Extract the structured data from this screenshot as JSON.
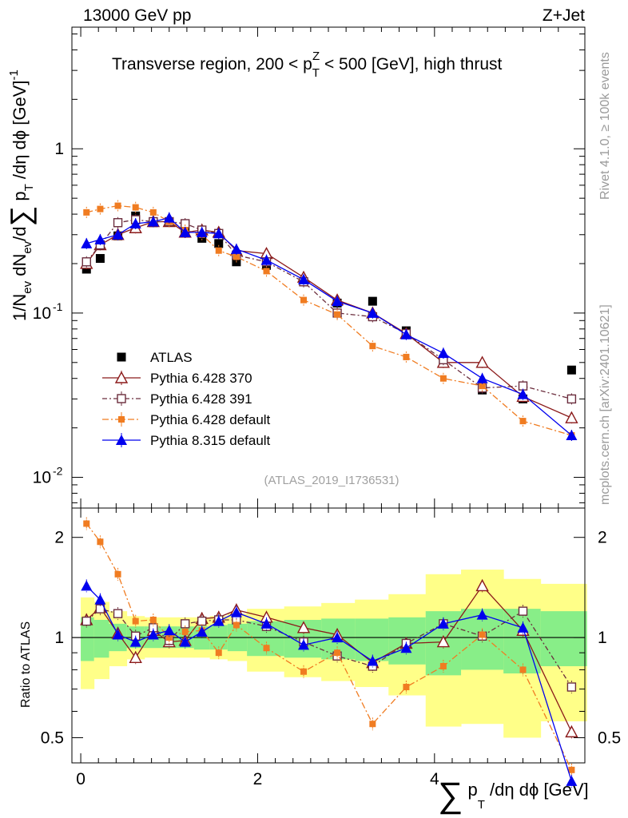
{
  "header": {
    "left": "13000 GeV pp",
    "right": "Z+Jet",
    "title": "Transverse region, 200 < p",
    "title_sup": "Z",
    "title_sub": "T",
    "title_tail": " < 500 [GeV], high thrust",
    "reference": "(ATLAS_2019_I1736531)",
    "side_rivet": "Rivet 4.1.0, ≥ 100k events",
    "side_mcplots": "mcplots.cern.ch [arXiv:2401.10621]"
  },
  "axes": {
    "ylabel_main": "1/N",
    "ylabel_ev": "ev",
    "ylabel_mid": " dN",
    "ylabel_ev2": "ev",
    "ylabel_rest": "/d",
    "ylabel_sum": "∑",
    "ylabel_p": " p",
    "ylabel_T": "T",
    "ylabel_tail": " /dη dϕ  [GeV]",
    "ylabel_exp": "-1",
    "ylabel_ratio": "Ratio to ATLAS",
    "xlabel_sum": "∑",
    "xlabel_p": " p",
    "xlabel_T": "T",
    "xlabel_tail": " /dη dϕ [GeV]",
    "xticks": [
      "0",
      "2",
      "4"
    ],
    "yticks_main": [
      {
        "value": 1,
        "label": "1"
      },
      {
        "value": 0.1,
        "base": "10",
        "exp": "-1"
      },
      {
        "value": 0.01,
        "base": "10",
        "exp": "-2"
      }
    ],
    "yticks_ratio": [
      "2",
      "1",
      "0.5"
    ]
  },
  "legend": [
    {
      "label": "ATLAS"
    },
    {
      "label": "Pythia 6.428 370"
    },
    {
      "label": "Pythia 6.428 391"
    },
    {
      "label": "Pythia 6.428 default"
    },
    {
      "label": "Pythia 8.315 default"
    }
  ],
  "chart_data": {
    "type": "scatter",
    "x_range": [
      -0.1,
      5.7
    ],
    "y_range_main": [
      0.0065,
      5.5
    ],
    "y_range_ratio": [
      0.42,
      2.45
    ],
    "x": [
      0.065,
      0.22,
      0.42,
      0.62,
      0.82,
      1.0,
      1.18,
      1.37,
      1.56,
      1.76,
      2.1,
      2.52,
      2.9,
      3.3,
      3.68,
      4.1,
      4.54,
      5.0,
      5.55
    ],
    "series": [
      {
        "name": "ATLAS",
        "color": "#000000",
        "marker": "square-filled",
        "dash": "",
        "values": [
          0.185,
          0.215,
          0.295,
          0.39,
          0.355,
          0.36,
          0.31,
          0.285,
          0.265,
          0.205,
          0.195,
          0.155,
          0.115,
          0.118,
          0.078,
          0.052,
          0.034,
          0.03,
          0.045
        ],
        "ratio": [
          1,
          1,
          1,
          1,
          1,
          1,
          1,
          1,
          1,
          1,
          1,
          1,
          1,
          1,
          1,
          1,
          1,
          1,
          1
        ]
      },
      {
        "name": "Pythia 6.428 370",
        "color": "#8b1a1a",
        "marker": "triangle-open",
        "dash": "",
        "values": [
          0.2,
          0.26,
          0.3,
          0.33,
          0.36,
          0.36,
          0.31,
          0.32,
          0.31,
          0.24,
          0.23,
          0.165,
          0.12,
          0.1,
          0.075,
          0.05,
          0.05,
          0.031,
          0.023
        ],
        "ratio": [
          1.13,
          1.23,
          1.03,
          0.87,
          1.05,
          0.97,
          0.98,
          1.14,
          1.15,
          1.21,
          1.15,
          1.07,
          1.02,
          0.84,
          0.96,
          0.97,
          1.43,
          1.05,
          0.52
        ]
      },
      {
        "name": "Pythia 6.428 391",
        "color": "#6b2d3d",
        "marker": "square-open",
        "dash": "6,3,2,3",
        "values": [
          0.205,
          0.26,
          0.355,
          0.37,
          0.36,
          0.36,
          0.35,
          0.32,
          0.305,
          0.225,
          0.205,
          0.155,
          0.1,
          0.095,
          0.075,
          0.052,
          0.035,
          0.036,
          0.03
        ],
        "ratio": [
          1.12,
          1.22,
          1.18,
          1.01,
          1.07,
          0.98,
          1.1,
          1.12,
          1.13,
          1.13,
          1.08,
          0.97,
          0.88,
          0.82,
          0.96,
          1.1,
          1.01,
          1.2,
          0.71
        ]
      },
      {
        "name": "Pythia 6.428 default",
        "color": "#f07c21",
        "marker": "square-small-filled",
        "dash": "8,3,2,3",
        "values": [
          0.41,
          0.43,
          0.45,
          0.44,
          0.41,
          0.36,
          0.32,
          0.3,
          0.24,
          0.22,
          0.18,
          0.12,
          0.098,
          0.063,
          0.054,
          0.04,
          0.036,
          0.022,
          0.018
        ],
        "ratio": [
          2.2,
          1.94,
          1.55,
          1.12,
          1.13,
          1.0,
          1.04,
          1.05,
          0.9,
          1.09,
          0.93,
          0.79,
          0.9,
          0.55,
          0.71,
          0.82,
          1.02,
          0.8,
          0.4
        ]
      },
      {
        "name": "Pythia 8.315 default",
        "color": "#0000ee",
        "marker": "triangle-filled",
        "dash": "",
        "values": [
          0.265,
          0.28,
          0.3,
          0.35,
          0.36,
          0.38,
          0.31,
          0.31,
          0.305,
          0.245,
          0.21,
          0.16,
          0.118,
          0.1,
          0.074,
          0.057,
          0.04,
          0.032,
          0.018
        ],
        "ratio": [
          1.43,
          1.3,
          1.02,
          0.97,
          1.02,
          1.05,
          0.97,
          1.04,
          1.12,
          1.19,
          1.1,
          0.95,
          1.0,
          0.85,
          0.93,
          1.1,
          1.17,
          1.07,
          0.37
        ]
      }
    ],
    "ratio_bands": {
      "edges": [
        0.0,
        0.15,
        0.32,
        0.52,
        0.72,
        0.92,
        1.1,
        1.28,
        1.46,
        1.66,
        1.88,
        2.3,
        2.72,
        3.1,
        3.48,
        3.9,
        4.3,
        4.78,
        5.2,
        5.72
      ],
      "green_lo": [
        0.85,
        0.87,
        0.91,
        0.93,
        0.93,
        0.93,
        0.93,
        0.92,
        0.92,
        0.91,
        0.88,
        0.87,
        0.86,
        0.85,
        0.83,
        0.77,
        0.8,
        0.78,
        0.82
      ],
      "green_hi": [
        1.15,
        1.13,
        1.1,
        1.08,
        1.08,
        1.08,
        1.08,
        1.08,
        1.09,
        1.1,
        1.12,
        1.13,
        1.14,
        1.14,
        1.15,
        1.2,
        1.22,
        1.22,
        1.2
      ],
      "yellow_lo": [
        0.7,
        0.75,
        0.82,
        0.86,
        0.87,
        0.87,
        0.87,
        0.87,
        0.86,
        0.85,
        0.79,
        0.76,
        0.74,
        0.71,
        0.67,
        0.54,
        0.55,
        0.5,
        0.56
      ],
      "yellow_hi": [
        1.32,
        1.28,
        1.2,
        1.16,
        1.15,
        1.15,
        1.15,
        1.15,
        1.16,
        1.18,
        1.22,
        1.24,
        1.27,
        1.3,
        1.35,
        1.55,
        1.6,
        1.5,
        1.45
      ]
    }
  }
}
